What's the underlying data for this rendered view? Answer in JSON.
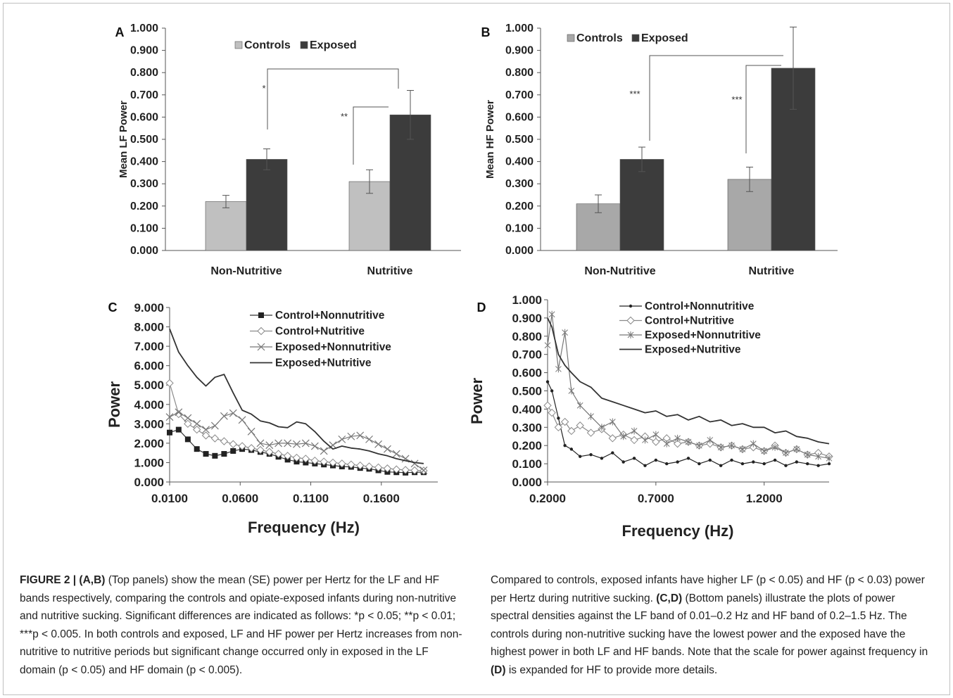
{
  "chart_data": [
    {
      "panel": "A",
      "type": "bar",
      "ylabel": "Mean LF Power",
      "ylim": [
        0,
        1
      ],
      "yticks": [
        "0.000",
        "0.100",
        "0.200",
        "0.300",
        "0.400",
        "0.500",
        "0.600",
        "0.700",
        "0.800",
        "0.900",
        "1.000"
      ],
      "categories": [
        "Non-Nutritive",
        "Nutritive"
      ],
      "series": [
        {
          "name": "Controls",
          "values": [
            0.22,
            0.31
          ],
          "errors": [
            0.028,
            0.053
          ],
          "color": "#c0c0c0"
        },
        {
          "name": "Exposed",
          "values": [
            0.41,
            0.61
          ],
          "errors": [
            0.047,
            0.11
          ],
          "color": "#3c3c3c"
        }
      ],
      "legend_position": "top",
      "annotations": [
        {
          "label": "*",
          "between": "Exposed Non-Nutritive vs Exposed Nutritive"
        },
        {
          "label": "**",
          "between": "Controls Nutritive vs Exposed Nutritive"
        }
      ]
    },
    {
      "panel": "B",
      "type": "bar",
      "ylabel": "Mean HF Power",
      "ylim": [
        0,
        1
      ],
      "yticks": [
        "0.000",
        "0.100",
        "0.200",
        "0.300",
        "0.400",
        "0.500",
        "0.600",
        "0.700",
        "0.800",
        "0.900",
        "1.000"
      ],
      "categories": [
        "Non-Nutritive",
        "Nutritive"
      ],
      "series": [
        {
          "name": "Controls",
          "values": [
            0.21,
            0.32
          ],
          "errors": [
            0.04,
            0.055
          ],
          "color": "#a8a8a8"
        },
        {
          "name": "Exposed",
          "values": [
            0.41,
            0.82
          ],
          "errors": [
            0.055,
            0.185
          ],
          "color": "#3c3c3c"
        }
      ],
      "legend_position": "top-left",
      "annotations": [
        {
          "label": "***",
          "between": "Exposed Non-Nutritive vs Exposed Nutritive"
        },
        {
          "label": "***",
          "between": "Controls Nutritive vs Exposed Nutritive"
        }
      ]
    },
    {
      "panel": "C",
      "type": "line",
      "xlabel": "Frequency (Hz)",
      "ylabel": "Power",
      "xlim": [
        0.01,
        0.2
      ],
      "ylim": [
        0,
        9
      ],
      "xticks": [
        "0.0100",
        "0.0600",
        "0.1100",
        "0.1600"
      ],
      "yticks": [
        "0.000",
        "1.000",
        "2.000",
        "3.000",
        "4.000",
        "5.000",
        "6.000",
        "7.000",
        "8.000",
        "9.000"
      ],
      "legend_position": "top-right",
      "series": [
        {
          "name": "Control+Nonnutritive",
          "marker": "square",
          "x": [
            0.01,
            0.0164,
            0.0229,
            0.0293,
            0.0357,
            0.0421,
            0.0486,
            0.055,
            0.0614,
            0.0679,
            0.0743,
            0.0807,
            0.0871,
            0.0936,
            0.1,
            0.1064,
            0.1129,
            0.1193,
            0.1257,
            0.1321,
            0.1386,
            0.145,
            0.1514,
            0.1579,
            0.1643,
            0.1707,
            0.1771,
            0.1836,
            0.19
          ],
          "y": [
            2.55,
            2.7,
            2.2,
            1.7,
            1.45,
            1.35,
            1.45,
            1.6,
            1.7,
            1.65,
            1.55,
            1.45,
            1.3,
            1.15,
            1.05,
            1.0,
            0.95,
            0.9,
            0.85,
            0.8,
            0.78,
            0.72,
            0.68,
            0.6,
            0.52,
            0.5,
            0.48,
            0.5,
            0.5
          ]
        },
        {
          "name": "Control+Nutritive",
          "marker": "diamond",
          "x": [
            0.01,
            0.0164,
            0.0229,
            0.0293,
            0.0357,
            0.0421,
            0.0486,
            0.055,
            0.0614,
            0.0679,
            0.0743,
            0.0807,
            0.0871,
            0.0936,
            0.1,
            0.1064,
            0.1129,
            0.1193,
            0.1257,
            0.1321,
            0.1386,
            0.145,
            0.1514,
            0.1579,
            0.1643,
            0.1707,
            0.1771,
            0.1836,
            0.19
          ],
          "y": [
            5.1,
            3.5,
            3.0,
            2.7,
            2.4,
            2.25,
            2.1,
            1.95,
            1.85,
            1.75,
            1.65,
            1.55,
            1.45,
            1.35,
            1.25,
            1.2,
            1.1,
            1.05,
            1.0,
            0.95,
            0.9,
            0.85,
            0.8,
            0.75,
            0.7,
            0.65,
            0.62,
            0.6,
            0.58
          ]
        },
        {
          "name": "Exposed+Nonnutritive",
          "marker": "x",
          "x": [
            0.01,
            0.0164,
            0.0229,
            0.0293,
            0.0357,
            0.0421,
            0.0486,
            0.055,
            0.0614,
            0.0679,
            0.0743,
            0.0807,
            0.0871,
            0.0936,
            0.1,
            0.1064,
            0.1129,
            0.1193,
            0.1257,
            0.1321,
            0.1386,
            0.145,
            0.1514,
            0.1579,
            0.1643,
            0.1707,
            0.1771,
            0.1836,
            0.19
          ],
          "y": [
            3.35,
            3.6,
            3.3,
            3.0,
            2.7,
            2.9,
            3.4,
            3.55,
            3.2,
            2.6,
            2.0,
            1.9,
            2.0,
            2.0,
            1.95,
            2.0,
            1.85,
            1.6,
            1.9,
            2.2,
            2.35,
            2.4,
            2.2,
            1.95,
            1.7,
            1.45,
            1.2,
            0.95,
            0.6
          ]
        },
        {
          "name": "Exposed+Nutritive",
          "marker": "none",
          "x": [
            0.01,
            0.0164,
            0.0229,
            0.0293,
            0.0357,
            0.0421,
            0.0486,
            0.055,
            0.0614,
            0.0679,
            0.0743,
            0.0807,
            0.0871,
            0.0936,
            0.1,
            0.1064,
            0.1129,
            0.1193,
            0.1257,
            0.1321,
            0.1386,
            0.145,
            0.1514,
            0.1579,
            0.1643,
            0.1707,
            0.1771,
            0.1836,
            0.19
          ],
          "y": [
            7.9,
            6.7,
            6.0,
            5.4,
            4.95,
            5.4,
            5.55,
            4.6,
            3.7,
            3.5,
            3.15,
            3.05,
            2.85,
            2.8,
            3.1,
            3.0,
            2.6,
            2.1,
            1.7,
            1.85,
            1.75,
            1.7,
            1.6,
            1.45,
            1.35,
            1.2,
            1.1,
            1.0,
            0.95
          ]
        }
      ]
    },
    {
      "panel": "D",
      "type": "line",
      "xlabel": "Frequency (Hz)",
      "ylabel": "Power",
      "xlim": [
        0.2,
        1.5
      ],
      "ylim": [
        0,
        1
      ],
      "xticks": [
        "0.2000",
        "0.7000",
        "1.2000"
      ],
      "yticks": [
        "0.000",
        "0.100",
        "0.200",
        "0.300",
        "0.400",
        "0.500",
        "0.600",
        "0.700",
        "0.800",
        "0.900",
        "1.000"
      ],
      "legend_position": "top-left",
      "series": [
        {
          "name": "Control+Nonnutritive",
          "marker": "dot",
          "x": [
            0.2,
            0.22,
            0.25,
            0.28,
            0.31,
            0.35,
            0.4,
            0.45,
            0.5,
            0.55,
            0.6,
            0.65,
            0.7,
            0.75,
            0.8,
            0.85,
            0.9,
            0.95,
            1.0,
            1.05,
            1.1,
            1.15,
            1.2,
            1.25,
            1.3,
            1.35,
            1.4,
            1.45,
            1.5
          ],
          "y": [
            0.55,
            0.5,
            0.35,
            0.2,
            0.18,
            0.14,
            0.15,
            0.13,
            0.16,
            0.11,
            0.13,
            0.09,
            0.12,
            0.1,
            0.11,
            0.13,
            0.1,
            0.12,
            0.09,
            0.12,
            0.1,
            0.11,
            0.1,
            0.12,
            0.09,
            0.11,
            0.1,
            0.09,
            0.1
          ]
        },
        {
          "name": "Control+Nutritive",
          "marker": "diamond",
          "x": [
            0.2,
            0.22,
            0.25,
            0.28,
            0.31,
            0.35,
            0.4,
            0.45,
            0.5,
            0.55,
            0.6,
            0.65,
            0.7,
            0.75,
            0.8,
            0.85,
            0.9,
            0.95,
            1.0,
            1.05,
            1.1,
            1.15,
            1.2,
            1.25,
            1.3,
            1.35,
            1.4,
            1.45,
            1.5
          ],
          "y": [
            0.42,
            0.38,
            0.3,
            0.33,
            0.28,
            0.31,
            0.27,
            0.29,
            0.24,
            0.26,
            0.23,
            0.25,
            0.22,
            0.24,
            0.21,
            0.22,
            0.2,
            0.21,
            0.19,
            0.2,
            0.18,
            0.19,
            0.17,
            0.2,
            0.16,
            0.18,
            0.15,
            0.16,
            0.14
          ]
        },
        {
          "name": "Exposed+Nonnutritive",
          "marker": "asterisk",
          "x": [
            0.2,
            0.22,
            0.25,
            0.28,
            0.31,
            0.35,
            0.4,
            0.45,
            0.5,
            0.55,
            0.6,
            0.65,
            0.7,
            0.75,
            0.8,
            0.85,
            0.9,
            0.95,
            1.0,
            1.05,
            1.1,
            1.15,
            1.2,
            1.25,
            1.3,
            1.35,
            1.4,
            1.45,
            1.5
          ],
          "y": [
            0.75,
            0.92,
            0.62,
            0.82,
            0.5,
            0.42,
            0.36,
            0.3,
            0.33,
            0.25,
            0.28,
            0.23,
            0.26,
            0.21,
            0.24,
            0.22,
            0.2,
            0.23,
            0.19,
            0.2,
            0.18,
            0.21,
            0.17,
            0.19,
            0.16,
            0.18,
            0.15,
            0.14,
            0.13
          ]
        },
        {
          "name": "Exposed+Nutritive",
          "marker": "none",
          "x": [
            0.2,
            0.22,
            0.25,
            0.28,
            0.31,
            0.35,
            0.4,
            0.45,
            0.5,
            0.55,
            0.6,
            0.65,
            0.7,
            0.75,
            0.8,
            0.85,
            0.9,
            0.95,
            1.0,
            1.05,
            1.1,
            1.15,
            1.2,
            1.25,
            1.3,
            1.35,
            1.4,
            1.45,
            1.5
          ],
          "y": [
            0.9,
            0.85,
            0.7,
            0.64,
            0.6,
            0.55,
            0.52,
            0.46,
            0.44,
            0.42,
            0.4,
            0.38,
            0.39,
            0.36,
            0.37,
            0.34,
            0.36,
            0.33,
            0.34,
            0.31,
            0.32,
            0.3,
            0.3,
            0.27,
            0.28,
            0.25,
            0.24,
            0.22,
            0.21
          ]
        }
      ]
    }
  ],
  "caption": {
    "left": {
      "head": "FIGURE 2 | (A,B)",
      "text": " (Top panels) show the mean (SE) power per Hertz for the LF and HF bands respectively, comparing the controls and opiate-exposed infants during non-nutritive and nutritive sucking. Significant differences are indicated as follows: *p < 0.05; **p < 0.01; ***p < 0.005. In both controls and exposed, LF and HF power per Hertz increases from non-nutritive to nutritive periods but significant change occurred only in exposed in the LF domain (p < 0.05) and HF domain (p < 0.005)."
    },
    "right": {
      "text1": "Compared to controls, exposed infants have higher LF (p < 0.05) and HF (p < 0.03) power per Hertz during nutritive sucking. ",
      "ref1": "(C,D)",
      "text2": " (Bottom panels) illustrate the plots of power spectral densities against the LF band of 0.01–0.2 Hz and HF band of 0.2–1.5 Hz. The controls during non-nutritive sucking have the lowest power and the exposed have the highest power in both LF and HF bands. Note that the scale for power against frequency in ",
      "ref2": "(D)",
      "text3": " is expanded for HF to provide more details."
    }
  }
}
